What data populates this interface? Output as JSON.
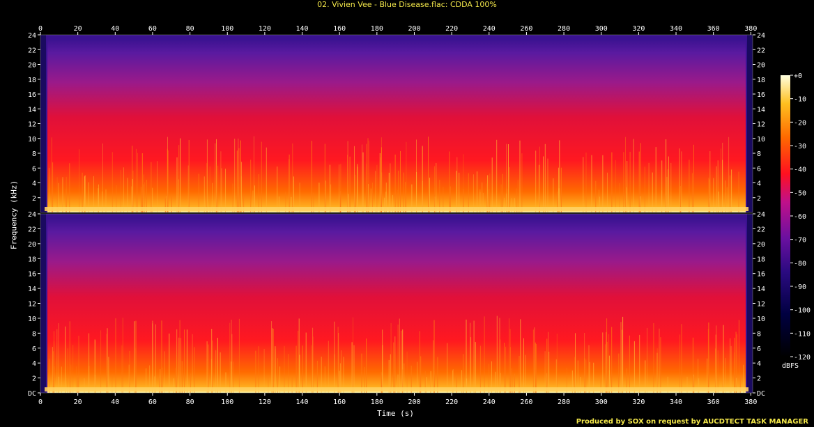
{
  "title": "02. Vivien Vee - Blue Disease.flac: CDDA 100%",
  "footer": "Produced by SOX on request by AUCDTECT TASK MANAGER",
  "chart_data": {
    "type": "heatmap",
    "title": "02. Vivien Vee - Blue Disease.flac: CDDA 100%",
    "xlabel": "Time (s)",
    "ylabel": "Frequency (kHz)",
    "xlim": [
      0,
      381
    ],
    "ylim": [
      0,
      24
    ],
    "x_ticks": [
      0,
      20,
      40,
      60,
      80,
      100,
      120,
      140,
      160,
      180,
      200,
      220,
      240,
      260,
      280,
      300,
      320,
      340,
      360,
      380
    ],
    "y_ticks_top": [
      "2",
      "4",
      "6",
      "8",
      "10",
      "12",
      "14",
      "16",
      "18",
      "20",
      "22",
      "24"
    ],
    "y_ticks_bottom": [
      "DC",
      "2",
      "4",
      "6",
      "8",
      "10",
      "12",
      "14",
      "16",
      "18",
      "20",
      "22",
      "24"
    ],
    "channels": 2,
    "colorbar": {
      "label": "dBFS",
      "ticks": [
        "+0",
        "-10",
        "-20",
        "-30",
        "-40",
        "-50",
        "-60",
        "-70",
        "-80",
        "-90",
        "-100",
        "-110",
        "-120"
      ],
      "range": [
        -120,
        0
      ]
    },
    "colors": {
      "low": "#000010",
      "mid_low": "#3a0a8a",
      "mid": "#8a1a9a",
      "high": "#ff1a20",
      "higher": "#ff8a00",
      "peak": "#fff6a0"
    }
  }
}
